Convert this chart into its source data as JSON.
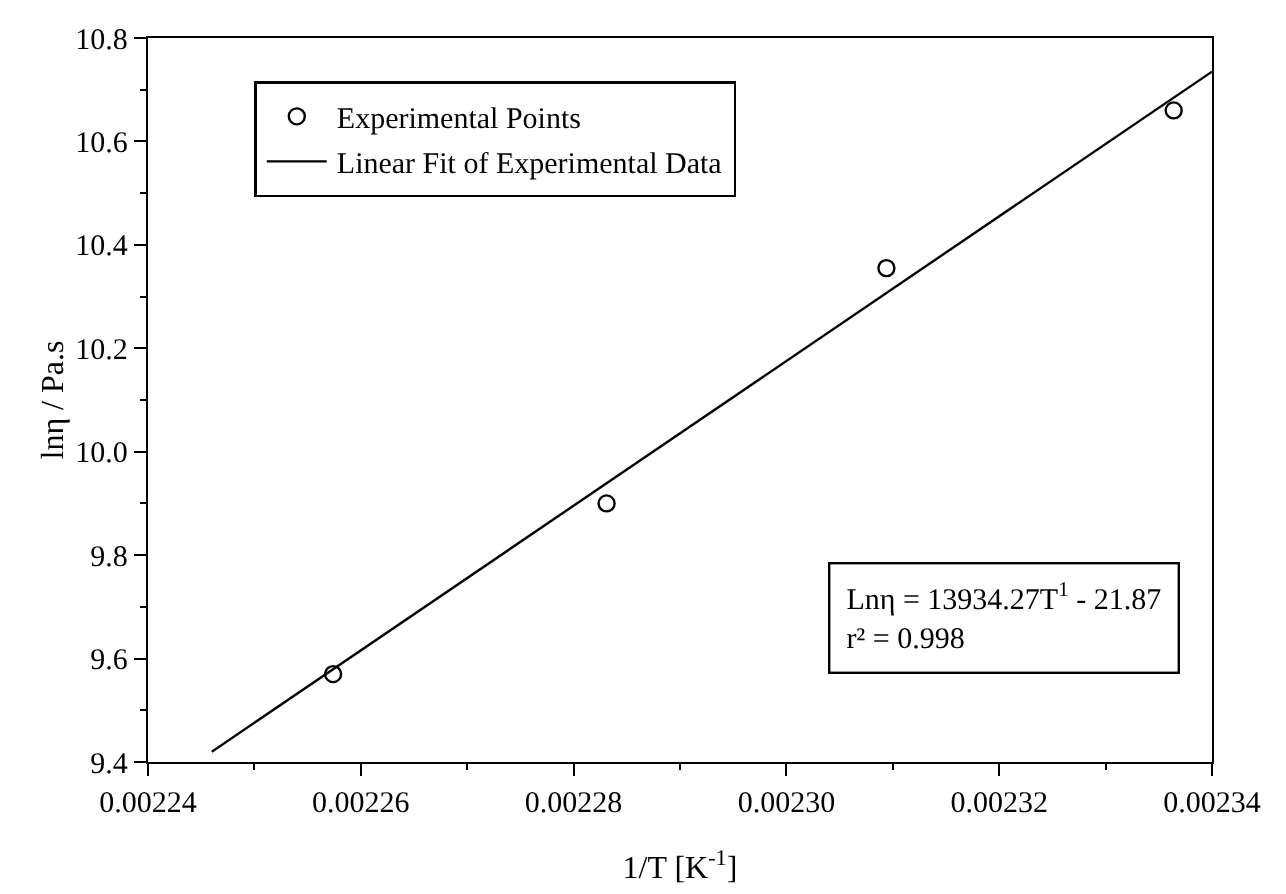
{
  "chart_data": {
    "type": "scatter",
    "xlabel": "1/T [K$^{-1}$]",
    "ylabel": "lnη / Pa.s",
    "series": [
      {
        "name": "Experimental Points",
        "marker": "circle",
        "color": "#000000",
        "x": [
          0.0022574,
          0.0022831,
          0.0023094,
          0.0023364
        ],
        "values": [
          9.57,
          9.9,
          10.355,
          10.66
        ]
      },
      {
        "name": "Linear Fit of Experimental Data",
        "type": "line",
        "marker": "none",
        "color": "#000000",
        "x": [
          0.002246,
          0.00234
        ],
        "values": [
          9.42,
          10.735
        ]
      }
    ],
    "xlim": [
      0.00224,
      0.00234
    ],
    "xticks": [
      0.00224,
      0.00226,
      0.00228,
      {
        "value": 0.0023,
        "label": "0.00230"
      },
      0.00232,
      0.00234
    ],
    "ylim": [
      9.4,
      10.8
    ],
    "yticks": [
      9.4,
      9.6,
      9.8,
      {
        "value": 10,
        "label": "10.0"
      },
      10.2,
      10.4,
      10.6,
      10.8
    ],
    "annotations": [
      "Lnη = 13934.27T$^{1}$ - 21.87",
      "r² = 0.998"
    ],
    "grid": false,
    "legend": "top left"
  }
}
